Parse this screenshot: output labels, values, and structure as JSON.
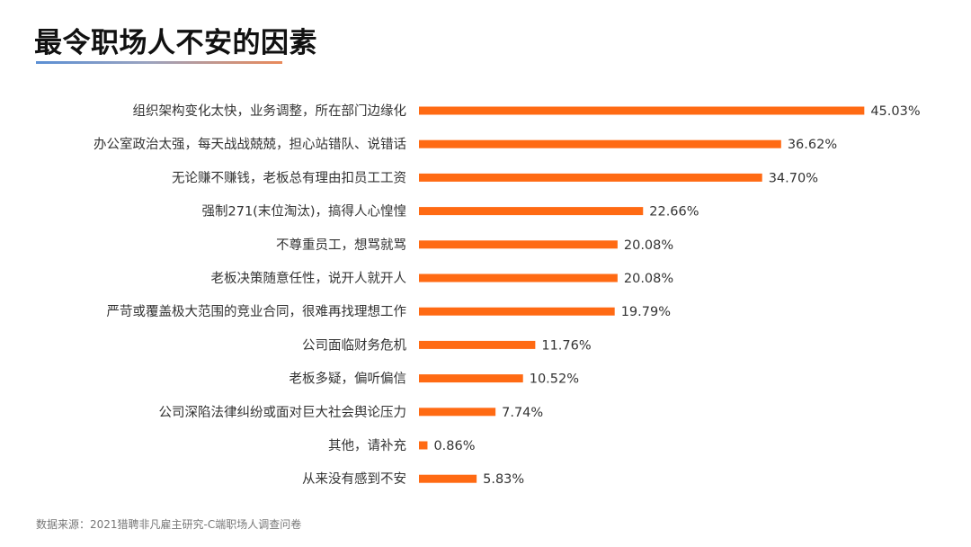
{
  "title": "最令职场人不安的因素",
  "source": "数据来源：2021猎聘非凡雇主研究-C端职场人调查问卷",
  "colors": {
    "bar": "#ff6a13",
    "title_text": "#111111",
    "label_text": "#333333"
  },
  "chart_data": {
    "type": "bar",
    "orientation": "horizontal",
    "categories": [
      "组织架构变化太快，业务调整，所在部门边缘化",
      "办公室政治太强，每天战战兢兢，担心站错队、说错话",
      "无论赚不赚钱，老板总有理由扣员工工资",
      "强制271(末位淘汰)，搞得人心惶惶",
      "不尊重员工，想骂就骂",
      "老板决策随意任性，说开人就开人",
      "严苛或覆盖极大范围的竞业合同，很难再找理想工作",
      "公司面临财务危机",
      "老板多疑，偏听偏信",
      "公司深陷法律纠纷或面对巨大社会舆论压力",
      "其他，请补充",
      "从来没有感到不安"
    ],
    "values": [
      45.03,
      36.62,
      34.7,
      22.66,
      20.08,
      20.08,
      19.79,
      11.76,
      10.52,
      7.74,
      0.86,
      5.83
    ],
    "value_labels": [
      "45.03%",
      "36.62%",
      "34.70%",
      "22.66%",
      "20.08%",
      "20.08%",
      "19.79%",
      "11.76%",
      "10.52%",
      "7.74%",
      "0.86%",
      "5.83%"
    ],
    "grid": false,
    "legend": "none"
  }
}
